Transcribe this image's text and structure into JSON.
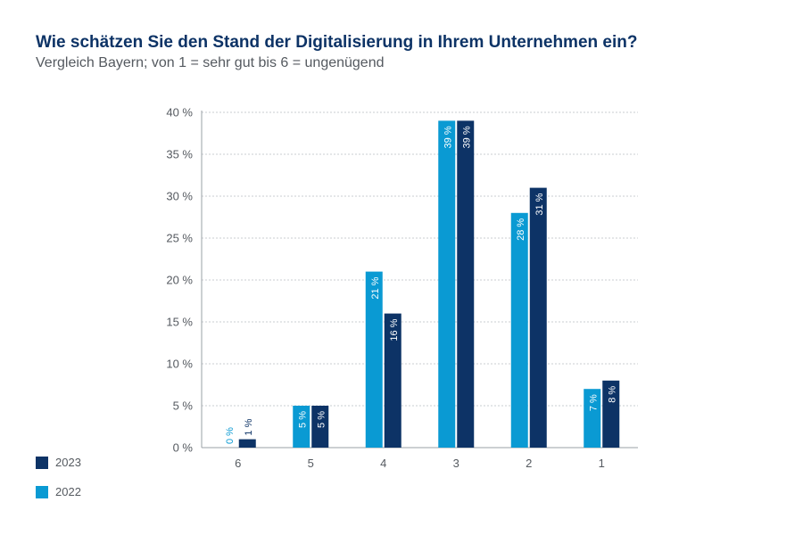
{
  "title": "Wie schätzen Sie den Stand der Digitalisierung in Ihrem Unternehmen ein?",
  "subtitle": "Vergleich Bayern; von 1 = sehr gut bis 6 = ungenügend",
  "colors": {
    "2022": "#0a9ad3",
    "2023": "#0d3366",
    "grid": "#c8cdd2",
    "axis": "#9aa0a6",
    "tick": "#555a60"
  },
  "legend": [
    {
      "label": "2023",
      "color": "#0d3366"
    },
    {
      "label": "2022",
      "color": "#0a9ad3"
    }
  ],
  "chart_data": {
    "type": "bar",
    "categories": [
      "6",
      "5",
      "4",
      "3",
      "2",
      "1"
    ],
    "series": [
      {
        "name": "2022",
        "values": [
          0,
          5,
          21,
          39,
          28,
          7
        ],
        "labels": [
          "0 %",
          "5 %",
          "21 %",
          "39 %",
          "28 %",
          "7 %"
        ]
      },
      {
        "name": "2023",
        "values": [
          1,
          5,
          16,
          39,
          31,
          8
        ],
        "labels": [
          "1 %",
          "5 %",
          "16 %",
          "39 %",
          "31 %",
          "8 %"
        ]
      }
    ],
    "yticks": [
      "0 %",
      "5 %",
      "10 %",
      "15 %",
      "20 %",
      "25 %",
      "30 %",
      "35 %",
      "40 %"
    ],
    "ylim": [
      0,
      40
    ],
    "grid": true,
    "legend_position": "bottom-left"
  }
}
